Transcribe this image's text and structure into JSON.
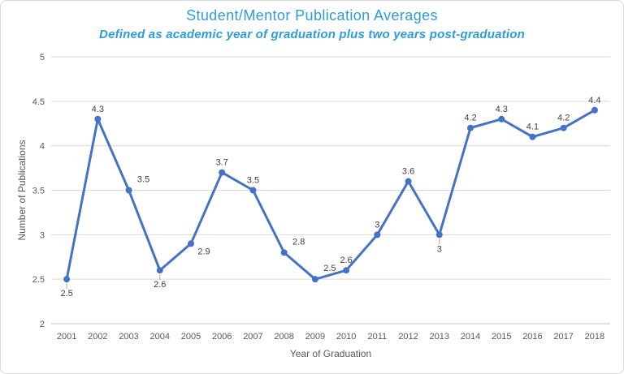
{
  "colors": {
    "title_text": "#2E9BDB",
    "series_line": "#4472C4",
    "gridline": "#D9D9D9",
    "axis_line": "#BFBFBF",
    "axis_text": "#595959",
    "data_label_text": "#404040",
    "leader_line": "#A6A6A6",
    "border": "#D9D9D9",
    "background": "#FFFFFF"
  },
  "chart_data": {
    "type": "line",
    "title": "Student/Mentor Publication Averages",
    "subtitle": "Defined as academic year of graduation plus two years post-graduation",
    "x": [
      "2001",
      "2002",
      "2003",
      "2004",
      "2005",
      "2006",
      "2007",
      "2008",
      "2009",
      "2010",
      "2011",
      "2012",
      "2013",
      "2014",
      "2015",
      "2016",
      "2017",
      "2018"
    ],
    "series": [
      {
        "values": [
          2.5,
          4.3,
          3.5,
          2.6,
          2.9,
          3.7,
          3.5,
          2.8,
          2.5,
          2.6,
          3,
          3.6,
          3,
          4.2,
          4.3,
          4.1,
          4.2,
          4.4
        ]
      }
    ],
    "xlabel": "Year of Graduation",
    "ylabel": "Number of Publications",
    "ylim": [
      2,
      5
    ],
    "yticks": [
      2,
      2.5,
      3,
      3.5,
      4,
      4.5,
      5
    ],
    "grid": true,
    "legend": false,
    "marker": "circle",
    "data_labels": true,
    "label_positions": [
      "below",
      "above",
      "above-right",
      "below",
      "below-right",
      "above",
      "above",
      "above-right",
      "above-right",
      "above",
      "above",
      "above",
      "below",
      "above",
      "above",
      "above",
      "above",
      "above"
    ],
    "leader_line_indices": [
      0,
      3,
      12
    ]
  }
}
